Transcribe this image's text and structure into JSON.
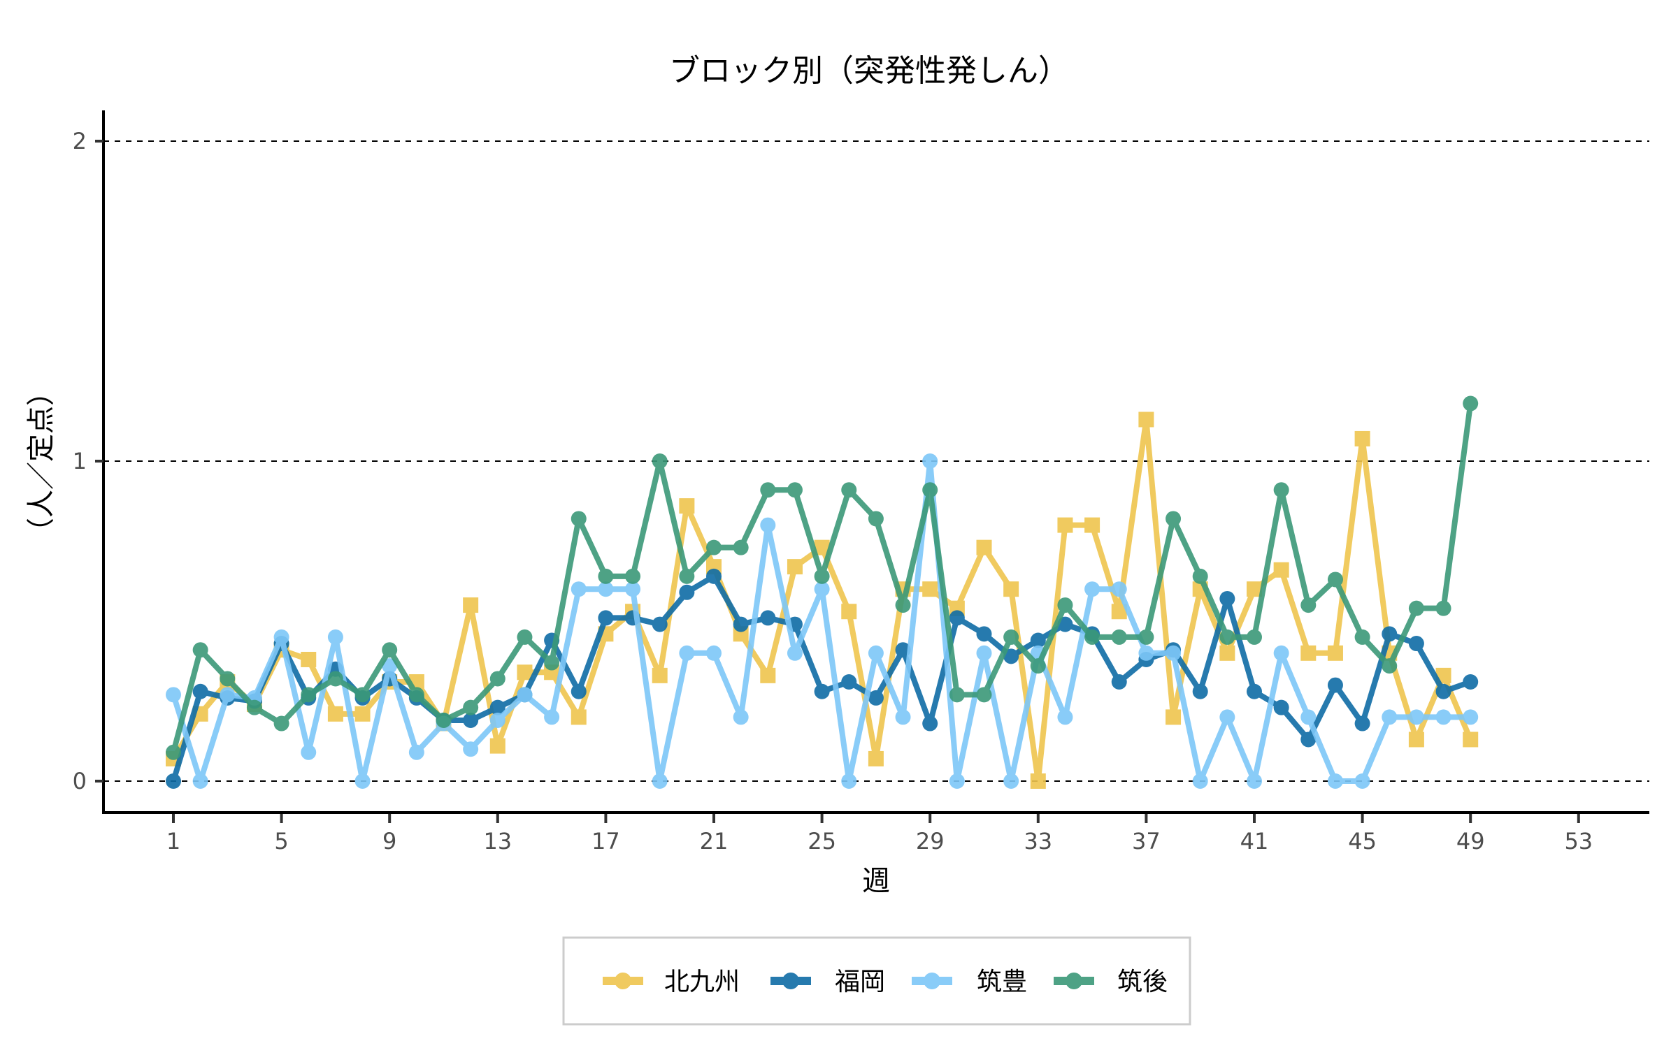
{
  "chart_data": {
    "type": "line",
    "title": "ブロック別（突発性発しん）",
    "xlabel": "週",
    "ylabel": "（人／定点）",
    "xlim": [
      -0.7,
      55.9
    ],
    "ylim": [
      -0.1,
      2.1
    ],
    "x_ticks": [
      1,
      5,
      9,
      13,
      17,
      21,
      25,
      29,
      33,
      37,
      41,
      45,
      49,
      53
    ],
    "x_tick_labels": [
      "1",
      "5",
      "9",
      "13",
      "17",
      "21",
      "25",
      "29",
      "33",
      "37",
      "41",
      "45",
      "49",
      "53"
    ],
    "y_ticks": [
      0,
      1,
      2
    ],
    "y_tick_labels": [
      "0",
      "1",
      "2"
    ],
    "grid": "horizontal dashed",
    "legend_position": "bottom",
    "x": [
      1,
      2,
      3,
      4,
      5,
      6,
      7,
      8,
      9,
      10,
      11,
      12,
      13,
      14,
      15,
      16,
      17,
      18,
      19,
      20,
      21,
      22,
      23,
      24,
      25,
      26,
      27,
      28,
      29,
      30,
      31,
      32,
      33,
      34,
      35,
      36,
      37,
      38,
      39,
      40,
      41,
      42,
      43,
      44,
      45,
      46,
      47,
      48,
      49
    ],
    "series": [
      {
        "name": "北九州",
        "color": "#EFC54E",
        "marker": "square",
        "values": [
          0.07,
          0.21,
          0.31,
          0.24,
          0.41,
          0.38,
          0.21,
          0.21,
          0.31,
          0.31,
          0.18,
          0.55,
          0.11,
          0.34,
          0.34,
          0.2,
          0.46,
          0.53,
          0.33,
          0.86,
          0.67,
          0.46,
          0.33,
          0.67,
          0.73,
          0.53,
          0.07,
          0.6,
          0.6,
          0.54,
          0.73,
          0.6,
          0.0,
          0.8,
          0.8,
          0.53,
          1.13,
          0.2,
          0.6,
          0.4,
          0.6,
          0.66,
          0.4,
          0.4,
          1.07,
          0.4,
          0.13,
          0.33,
          0.13
        ]
      },
      {
        "name": "福岡",
        "color": "#0F6CA6",
        "marker": "circle",
        "values": [
          0.0,
          0.28,
          0.26,
          0.25,
          0.43,
          0.26,
          0.35,
          0.26,
          0.32,
          0.26,
          0.19,
          0.19,
          0.23,
          0.27,
          0.44,
          0.28,
          0.51,
          0.51,
          0.49,
          0.59,
          0.64,
          0.49,
          0.51,
          0.49,
          0.28,
          0.31,
          0.26,
          0.41,
          0.18,
          0.51,
          0.46,
          0.39,
          0.44,
          0.49,
          0.46,
          0.31,
          0.38,
          0.41,
          0.28,
          0.57,
          0.28,
          0.23,
          0.13,
          0.3,
          0.18,
          0.46,
          0.43,
          0.28,
          0.31
        ]
      },
      {
        "name": "筑豊",
        "color": "#7DC7F8",
        "marker": "circle",
        "values": [
          0.27,
          0.0,
          0.27,
          0.26,
          0.45,
          0.09,
          0.45,
          0.0,
          0.36,
          0.09,
          0.18,
          0.1,
          0.19,
          0.27,
          0.2,
          0.6,
          0.6,
          0.6,
          0.0,
          0.4,
          0.4,
          0.2,
          0.8,
          0.4,
          0.6,
          0.0,
          0.4,
          0.2,
          1.0,
          0.0,
          0.4,
          0.0,
          0.4,
          0.2,
          0.6,
          0.6,
          0.4,
          0.4,
          0.0,
          0.2,
          0.0,
          0.4,
          0.2,
          0.0,
          0.0,
          0.2,
          0.2,
          0.2,
          0.2
        ]
      },
      {
        "name": "筑後",
        "color": "#3B9978",
        "marker": "circle",
        "values": [
          0.09,
          0.41,
          0.32,
          0.23,
          0.18,
          0.27,
          0.32,
          0.27,
          0.41,
          0.27,
          0.19,
          0.23,
          0.32,
          0.45,
          0.37,
          0.82,
          0.64,
          0.64,
          1.0,
          0.64,
          0.73,
          0.73,
          0.91,
          0.91,
          0.64,
          0.91,
          0.82,
          0.55,
          0.91,
          0.27,
          0.27,
          0.45,
          0.36,
          0.55,
          0.45,
          0.45,
          0.45,
          0.82,
          0.64,
          0.45,
          0.45,
          0.91,
          0.55,
          0.63,
          0.45,
          0.36,
          0.54,
          0.54,
          1.18
        ]
      }
    ]
  }
}
